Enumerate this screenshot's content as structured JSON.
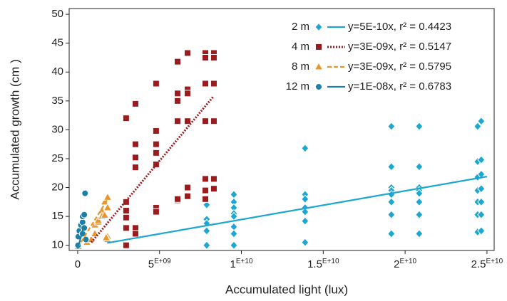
{
  "chart_data": {
    "type": "scatter",
    "x_label": "Accumulated light (lux)",
    "y_label": "Accumulated growth (cm )",
    "xlim": [
      -520000000.0,
      25440000000.0
    ],
    "ylim": [
      9.1,
      51
    ],
    "xticks": [
      0,
      {
        "value": 5000000000.0,
        "label": "5E+09"
      },
      {
        "value": 10000000000.0,
        "label": "1E+10"
      },
      {
        "value": 15000000000.0,
        "label": "1.5E+10"
      },
      {
        "value": 20000000000.0,
        "label": "2E+10"
      },
      {
        "value": 25000000000.0,
        "label": "2.5E+10"
      }
    ],
    "yticks": [
      10,
      15,
      20,
      25,
      30,
      35,
      40,
      45,
      50
    ],
    "series": [
      {
        "name": "2 m",
        "equation": "y=5E-10x, r² = 0.4423",
        "color": "#1ba7d2",
        "marker": "diamond",
        "line_style": "solid",
        "x": [
          7880000000.0,
          7880000000.0,
          7880000000.0,
          7880000000.0,
          7880000000.0,
          9540000000.0,
          9540000000.0,
          9540000000.0,
          9540000000.0,
          9540000000.0,
          9540000000.0,
          9540000000.0,
          9540000000.0,
          13890000000.0,
          13890000000.0,
          13890000000.0,
          13890000000.0,
          13890000000.0,
          13890000000.0,
          13890000000.0,
          19160000000.0,
          19160000000.0,
          19160000000.0,
          19160000000.0,
          19160000000.0,
          19160000000.0,
          19160000000.0,
          19160000000.0,
          20860000000.0,
          20860000000.0,
          20860000000.0,
          20860000000.0,
          20860000000.0,
          20860000000.0,
          20860000000.0,
          20860000000.0,
          24430000000.0,
          24430000000.0,
          24430000000.0,
          24430000000.0,
          24430000000.0,
          24430000000.0,
          24430000000.0,
          24650000000.0,
          24650000000.0,
          24650000000.0,
          24650000000.0,
          24650000000.0,
          24650000000.0,
          24650000000.0
        ],
        "values": [
          17,
          14.5,
          13.8,
          12.5,
          10,
          18.8,
          17.5,
          16.5,
          15.5,
          15,
          13.2,
          12,
          10,
          26.8,
          18.8,
          18,
          16.5,
          15.8,
          14.2,
          10.5,
          30.6,
          23.6,
          20,
          19.5,
          18.8,
          17.5,
          15.3,
          12,
          30.6,
          23.6,
          20,
          19.5,
          19,
          17.5,
          15.3,
          12,
          30.6,
          24.5,
          21.8,
          19.5,
          17.5,
          15.3,
          12.3,
          31.5,
          24.8,
          22.3,
          19.8,
          17.5,
          15.3,
          12.5
        ],
        "trendline": {
          "x": [
            1800000000.0,
            25000000000.0
          ],
          "y": [
            10.4,
            21.9
          ]
        }
      },
      {
        "name": "4 m",
        "equation": "y=3E-09x, r² = 0.5147",
        "color": "#9b1c1f",
        "marker": "square",
        "line_style": "dotted",
        "x": [
          2960000000.0,
          2960000000.0,
          2960000000.0,
          2960000000.0,
          2960000000.0,
          2960000000.0,
          3530000000.0,
          3530000000.0,
          3530000000.0,
          3530000000.0,
          3530000000.0,
          3530000000.0,
          4790000000.0,
          4790000000.0,
          4790000000.0,
          4790000000.0,
          4790000000.0,
          4790000000.0,
          4790000000.0,
          6100000000.0,
          6100000000.0,
          6100000000.0,
          6100000000.0,
          6100000000.0,
          6100000000.0,
          6710000000.0,
          6710000000.0,
          6710000000.0,
          6710000000.0,
          6710000000.0,
          6710000000.0,
          7800000000.0,
          7800000000.0,
          7800000000.0,
          7800000000.0,
          7800000000.0,
          7800000000.0,
          7800000000.0,
          8320000000.0,
          8320000000.0,
          8320000000.0,
          8320000000.0,
          8320000000.0,
          8320000000.0
        ],
        "values": [
          32,
          17.5,
          16,
          14.8,
          13,
          10,
          34.5,
          27.5,
          25.2,
          23.5,
          13,
          12,
          38,
          29.8,
          27.5,
          26,
          24,
          16.5,
          15.8,
          41.8,
          36.3,
          35,
          31.5,
          17.8,
          18,
          43.3,
          37,
          36.3,
          31.5,
          20,
          18.5,
          43.3,
          42.5,
          38,
          31.5,
          21.5,
          19.5,
          18,
          43.3,
          42.5,
          38,
          31.5,
          21.5,
          19.8
        ],
        "trendline": {
          "x": [
            830000000.0,
            8300000000.0
          ],
          "y": [
            10.5,
            35.8
          ]
        }
      },
      {
        "name": "8 m",
        "equation": "y=3E-09x, r² = 0.5795",
        "color": "#e8962c",
        "marker": "triangle",
        "line_style": "dashed",
        "x": [
          40000000.0,
          570000000.0,
          830000000.0,
          1050000000.0,
          1050000000.0,
          1260000000.0,
          1260000000.0,
          1480000000.0,
          1480000000.0,
          1650000000.0,
          1650000000.0,
          1830000000.0,
          1830000000.0,
          1830000000.0,
          1830000000.0,
          1740000000.0
        ],
        "values": [
          9.8,
          10.5,
          11,
          12,
          13.5,
          14,
          14.3,
          16,
          15,
          17.5,
          15.2,
          18.3,
          16.5,
          11.5,
          11,
          11.3
        ],
        "trendline": {
          "x": [
            0,
            1900000000.0
          ],
          "y": [
            9.6,
            18.3
          ]
        }
      },
      {
        "name": "12 m",
        "equation": "y=1E-08x, r² = 0.6783",
        "color": "#1b80a6",
        "marker": "circle",
        "line_style": "solid",
        "x": [
          20000000.0,
          40000000.0,
          100000000.0,
          200000000.0,
          300000000.0,
          300000000.0,
          400000000.0,
          450000000.0,
          500000000.0,
          300000000.0,
          400000000.0
        ],
        "values": [
          10,
          11.5,
          12.5,
          13.5,
          14,
          15,
          15.3,
          19,
          11,
          12,
          13
        ],
        "trendline": {
          "x": [
            0,
            400000000.0
          ],
          "y": [
            9.4,
            13.5
          ]
        }
      }
    ]
  }
}
